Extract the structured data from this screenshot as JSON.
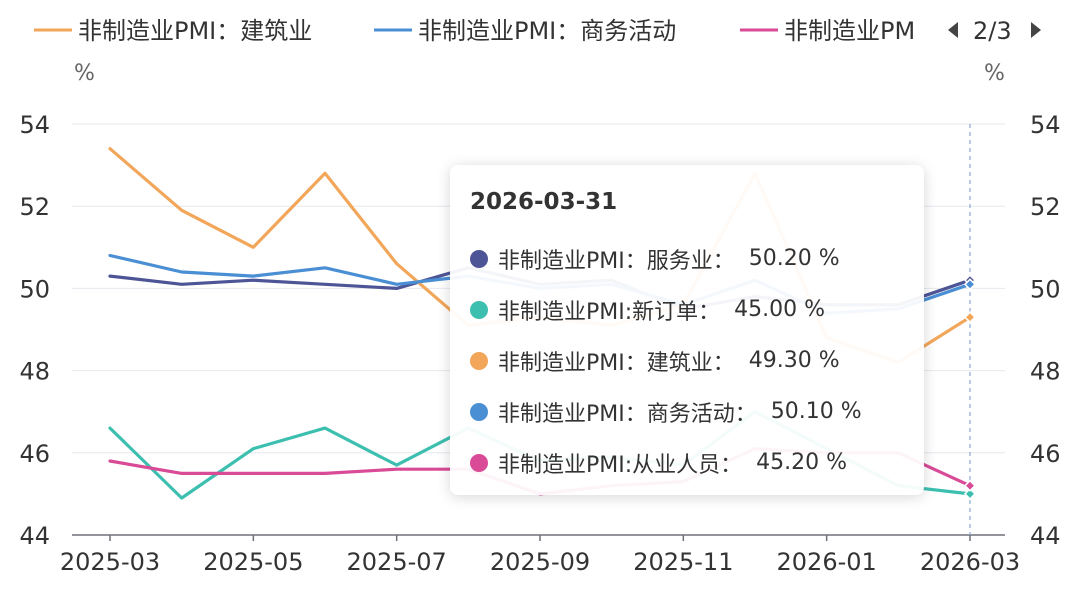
{
  "legend": {
    "items": [
      {
        "name": "非制造业PMI：建筑业",
        "color": "#f2a65a"
      },
      {
        "name": "非制造业PMI：商务活动",
        "color": "#4a8fd4"
      },
      {
        "name": "非制造业PM",
        "color": "#d94b96"
      }
    ],
    "pager": "2/3",
    "prev_icon": "triangle-left-icon",
    "next_icon": "triangle-right-icon"
  },
  "axes": {
    "left_unit": "%",
    "right_unit": "%"
  },
  "tooltip": {
    "date": "2026-03-31",
    "rows": [
      {
        "name": "非制造业PMI：服务业：",
        "value": "50.20 %",
        "color": "#4e5596"
      },
      {
        "name": "非制造业PMI:新订单：",
        "value": "45.00 %",
        "color": "#3dbfb0"
      },
      {
        "name": "非制造业PMI：建筑业：",
        "value": "49.30 %",
        "color": "#f2a65a"
      },
      {
        "name": "非制造业PMI：商务活动：",
        "value": "50.10 %",
        "color": "#4a8fd4"
      },
      {
        "name": "非制造业PMI:从业人员：",
        "value": "45.20 %",
        "color": "#d94b96"
      }
    ]
  },
  "chart_data": {
    "type": "line",
    "x": [
      "2025-03",
      "2025-04",
      "2025-05",
      "2025-06",
      "2025-07",
      "2025-08",
      "2025-09",
      "2025-10",
      "2025-11",
      "2025-12",
      "2026-01",
      "2026-02",
      "2026-03"
    ],
    "x_tick_labels": [
      "2025-03",
      "2025-05",
      "2025-07",
      "2025-09",
      "2025-11",
      "2026-01",
      "2026-03"
    ],
    "y_ticks": [
      44,
      46,
      48,
      50,
      52,
      54
    ],
    "ylim": [
      44,
      54
    ],
    "y_unit": "%",
    "highlight_x": "2026-03",
    "series": [
      {
        "name": "非制造业PMI：服务业",
        "color": "#4e5596",
        "values": [
          50.3,
          50.1,
          50.2,
          50.1,
          50.0,
          50.5,
          50.1,
          50.2,
          49.5,
          49.8,
          49.6,
          49.6,
          50.2
        ]
      },
      {
        "name": "非制造业PMI:新订单",
        "color": "#3dbfb0",
        "values": [
          46.6,
          44.9,
          46.1,
          46.6,
          45.7,
          46.6,
          45.8,
          45.9,
          45.7,
          47.0,
          46.1,
          45.2,
          45.0
        ]
      },
      {
        "name": "非制造业PMI：建筑业",
        "color": "#f2a65a",
        "values": [
          53.4,
          51.9,
          51.0,
          52.8,
          50.6,
          49.1,
          49.3,
          49.1,
          49.6,
          52.8,
          48.8,
          48.2,
          49.3
        ]
      },
      {
        "name": "非制造业PMI：商务活动",
        "color": "#4a8fd4",
        "values": [
          50.8,
          50.4,
          50.3,
          50.5,
          50.1,
          50.3,
          50.0,
          50.1,
          49.6,
          50.2,
          49.4,
          49.5,
          50.1
        ]
      },
      {
        "name": "非制造业PMI:从业人员",
        "color": "#d94b96",
        "values": [
          45.8,
          45.5,
          45.5,
          45.5,
          45.6,
          45.6,
          45.0,
          45.2,
          45.3,
          46.1,
          46.0,
          46.0,
          45.2
        ]
      }
    ]
  }
}
